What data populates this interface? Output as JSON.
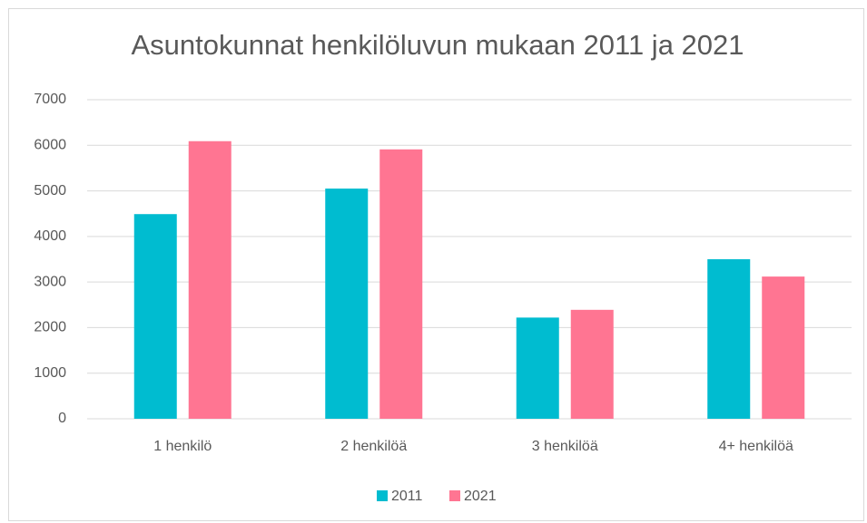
{
  "chart_data": {
    "type": "bar",
    "title": "Asuntokunnat henkilöluvun mukaan 2011 ja 2021",
    "categories": [
      "1 henkilö",
      "2 henkilöä",
      "3 henkilöä",
      "4+ henkilöä"
    ],
    "series": [
      {
        "name": "2011",
        "color": "#00bcd0",
        "values": [
          4490,
          5050,
          2220,
          3500
        ]
      },
      {
        "name": "2021",
        "color": "#ff7592",
        "values": [
          6090,
          5910,
          2390,
          3120
        ]
      }
    ],
    "ylim": [
      0,
      7000
    ],
    "yticks": [
      0,
      1000,
      2000,
      3000,
      4000,
      5000,
      6000,
      7000
    ],
    "grid": true,
    "legend": "bottom"
  }
}
